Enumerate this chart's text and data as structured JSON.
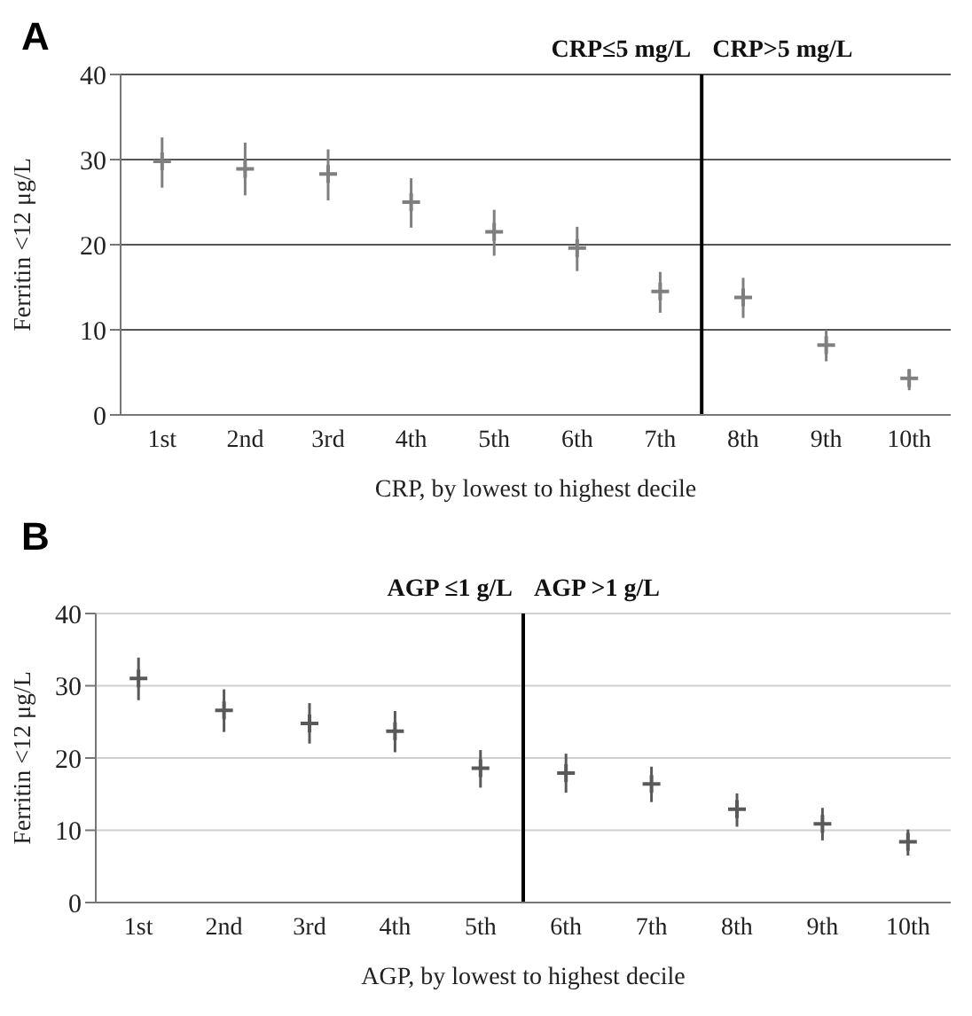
{
  "chart_data": [
    {
      "type": "scatter",
      "title": "A",
      "xlabel": "CRP, by lowest to highest decile",
      "ylabel": "Ferritin <12 μg/L",
      "x": [
        1,
        2,
        3,
        4,
        5,
        6,
        7,
        8,
        9,
        10
      ],
      "xlim": [
        0.5,
        10.5
      ],
      "xticks": [
        {
          "value": 1,
          "label": "1st"
        },
        {
          "value": 2,
          "label": "2nd"
        },
        {
          "value": 3,
          "label": "3rd"
        },
        {
          "value": 4,
          "label": "4th"
        },
        {
          "value": 5,
          "label": "5th"
        },
        {
          "value": 6,
          "label": "6th"
        },
        {
          "value": 7,
          "label": "7th"
        },
        {
          "value": 8,
          "label": "8th"
        },
        {
          "value": 9,
          "label": "9th"
        },
        {
          "value": 10,
          "label": "10th"
        }
      ],
      "ylim": [
        0,
        40
      ],
      "yticks": [
        0,
        10,
        20,
        30,
        40
      ],
      "grid": "y",
      "marker": "cross",
      "series": [
        {
          "color": "#7f7f7f",
          "values": [
            29.8,
            28.9,
            28.3,
            25,
            21.5,
            19.6,
            14.5,
            13.8,
            8.2,
            4.3
          ],
          "errors": [
            [
              26.7,
              32.6
            ],
            [
              25.8,
              32
            ],
            [
              25.2,
              31.2
            ],
            [
              22,
              27.8
            ],
            [
              18.7,
              24.1
            ],
            [
              16.9,
              22.1
            ],
            [
              12,
              16.8
            ],
            [
              11.4,
              16.1
            ],
            [
              6.3,
              10
            ],
            [
              2.9,
              5.4
            ]
          ]
        }
      ],
      "ref_lines": [
        {
          "axis": "x",
          "value": 7.5,
          "color": "#000000"
        }
      ],
      "annotations": [
        "CRP≤5 mg/L",
        "CRP>5 mg/L"
      ]
    },
    {
      "type": "scatter",
      "title": "B",
      "xlabel": "AGP, by lowest to highest decile",
      "ylabel": "Ferritin <12 μg/L",
      "x": [
        1,
        2,
        3,
        4,
        5,
        6,
        7,
        8,
        9,
        10
      ],
      "xlim": [
        0.5,
        10.5
      ],
      "xticks": [
        {
          "value": 1,
          "label": "1st"
        },
        {
          "value": 2,
          "label": "2nd"
        },
        {
          "value": 3,
          "label": "3rd"
        },
        {
          "value": 4,
          "label": "4th"
        },
        {
          "value": 5,
          "label": "5th"
        },
        {
          "value": 6,
          "label": "6th"
        },
        {
          "value": 7,
          "label": "7th"
        },
        {
          "value": 8,
          "label": "8th"
        },
        {
          "value": 9,
          "label": "9th"
        },
        {
          "value": 10,
          "label": "10th"
        }
      ],
      "ylim": [
        0,
        40
      ],
      "yticks": [
        0,
        10,
        20,
        30,
        40
      ],
      "grid": "y",
      "marker": "cross",
      "series": [
        {
          "color": "#595959",
          "values": [
            31,
            26.6,
            24.8,
            23.7,
            18.6,
            17.9,
            16.4,
            12.9,
            10.9,
            8.4
          ],
          "errors": [
            [
              28,
              33.9
            ],
            [
              23.6,
              29.5
            ],
            [
              22,
              27.6
            ],
            [
              20.8,
              26.5
            ],
            [
              15.9,
              21.1
            ],
            [
              15.2,
              20.6
            ],
            [
              13.9,
              18.8
            ],
            [
              10.5,
              15.1
            ],
            [
              8.6,
              13.1
            ],
            [
              6.5,
              10.1
            ]
          ]
        }
      ],
      "ref_lines": [
        {
          "axis": "x",
          "value": 5.5,
          "color": "#000000"
        }
      ],
      "annotations": [
        "AGP ≤1 g/L",
        "AGP >1 g/L"
      ]
    }
  ]
}
